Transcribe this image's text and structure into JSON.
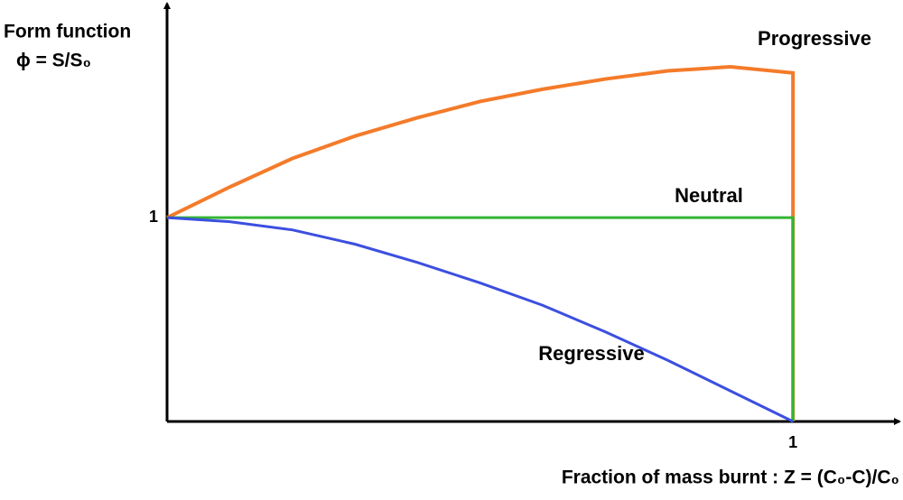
{
  "chart_data": {
    "type": "line",
    "y_label": [
      "Form function",
      "ϕ = S/S₀"
    ],
    "x_label": "Fraction of mass burnt : Z = (C₀-C)/C₀",
    "xlim": [
      0,
      1.17
    ],
    "ylim": [
      0,
      2.05
    ],
    "xticks": [
      1
    ],
    "yticks": [
      1
    ],
    "series": [
      {
        "name": "Progressive",
        "color": "#f47b2a",
        "x": [
          0,
          0.1,
          0.2,
          0.3,
          0.4,
          0.5,
          0.6,
          0.7,
          0.8,
          0.9,
          1,
          1
        ],
        "values": [
          1,
          1.15,
          1.29,
          1.4,
          1.49,
          1.57,
          1.63,
          1.68,
          1.72,
          1.74,
          1.71,
          0
        ]
      },
      {
        "name": "Neutral",
        "color": "#33b533",
        "x": [
          0,
          1,
          1
        ],
        "values": [
          1,
          1,
          0
        ]
      },
      {
        "name": "Regressive",
        "color": "#3c4fe0",
        "x": [
          0,
          0.1,
          0.2,
          0.3,
          0.4,
          0.5,
          0.6,
          0.7,
          0.8,
          0.9,
          1
        ],
        "values": [
          1,
          0.98,
          0.94,
          0.87,
          0.78,
          0.68,
          0.57,
          0.44,
          0.3,
          0.15,
          0
        ]
      }
    ]
  }
}
